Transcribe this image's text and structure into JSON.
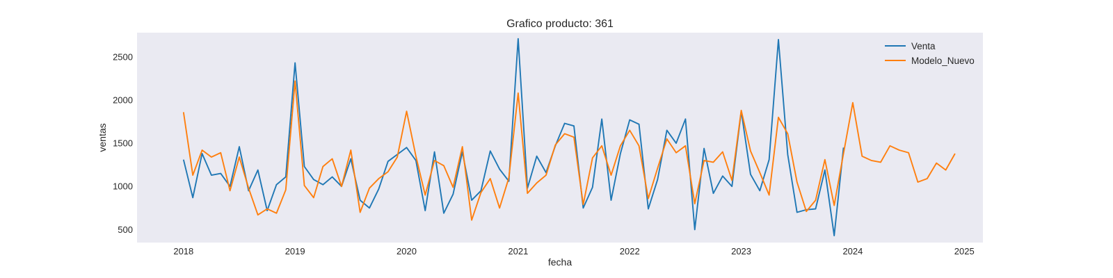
{
  "chart_data": {
    "type": "line",
    "title": "Grafico producto: 361",
    "xlabel": "fecha",
    "ylabel": "ventas",
    "xlim": [
      "2017-08-01",
      "2025-03-01"
    ],
    "ylim": [
      350,
      2780
    ],
    "x_ticks": [
      "2018",
      "2019",
      "2020",
      "2021",
      "2022",
      "2023",
      "2024",
      "2025"
    ],
    "y_ticks": [
      500,
      1000,
      1500,
      2000,
      2500
    ],
    "grid": false,
    "background": "#eaeaf2",
    "legend_position": "top-right",
    "start_month": "2018-01",
    "series": [
      {
        "name": "Venta",
        "color": "#1f77b4",
        "values": [
          1310,
          870,
          1380,
          1130,
          1150,
          1000,
          1460,
          950,
          1190,
          720,
          1020,
          1110,
          2430,
          1230,
          1080,
          1020,
          1110,
          1000,
          1320,
          840,
          750,
          970,
          1290,
          1370,
          1450,
          1300,
          720,
          1400,
          690,
          910,
          1400,
          840,
          950,
          1410,
          1200,
          1060,
          2710,
          980,
          1350,
          1160,
          1470,
          1730,
          1700,
          750,
          990,
          1780,
          840,
          1380,
          1770,
          1720,
          740,
          1080,
          1650,
          1500,
          1780,
          500,
          1440,
          920,
          1120,
          1000,
          1870,
          1140,
          950,
          1310,
          2700,
          1370,
          700,
          730,
          740,
          1190,
          430,
          1450
        ]
      },
      {
        "name": "Modelo_Nuevo",
        "color": "#ff7f0e",
        "values": [
          1860,
          1130,
          1420,
          1340,
          1390,
          950,
          1340,
          980,
          670,
          740,
          690,
          960,
          2220,
          1010,
          870,
          1230,
          1320,
          1000,
          1420,
          700,
          980,
          1090,
          1170,
          1340,
          1870,
          1350,
          900,
          1300,
          1240,
          990,
          1460,
          610,
          930,
          1090,
          750,
          1100,
          2080,
          920,
          1040,
          1130,
          1480,
          1610,
          1570,
          790,
          1330,
          1470,
          1130,
          1470,
          1650,
          1470,
          860,
          1210,
          1550,
          1390,
          1470,
          800,
          1300,
          1280,
          1400,
          1070,
          1880,
          1410,
          1160,
          900,
          1800,
          1610,
          1050,
          710,
          840,
          1310,
          780,
          1380,
          1970,
          1350,
          1300,
          1280,
          1470,
          1420,
          1390,
          1050,
          1090,
          1270,
          1190,
          1380
        ]
      }
    ]
  }
}
